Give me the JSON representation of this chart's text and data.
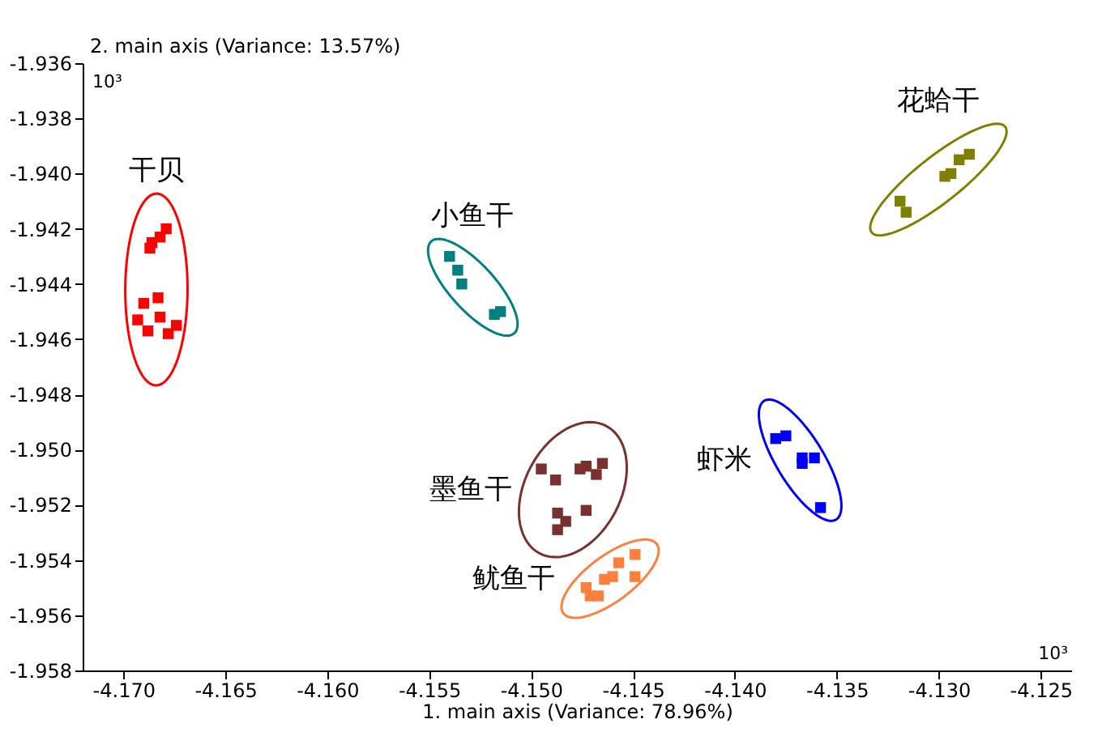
{
  "chart_data": {
    "type": "scatter",
    "xlabel": "1. main axis (Variance: 78.96%)",
    "ylabel": "2. main axis (Variance: 13.57%)",
    "annotations": [
      "10³",
      "10³"
    ],
    "xlim": [
      -4.172,
      -4.1235
    ],
    "ylim": [
      -1.958,
      -1.936
    ],
    "xticks": [
      {
        "value": -4.17,
        "label": "-4.170"
      },
      {
        "value": -4.165,
        "label": "-4.165"
      },
      {
        "value": -4.16,
        "label": "-4.160"
      },
      {
        "value": -4.155,
        "label": "-4.155"
      },
      {
        "value": -4.15,
        "label": "-4.150"
      },
      {
        "value": -4.145,
        "label": "-4.145"
      },
      {
        "value": -4.14,
        "label": "-4.140"
      },
      {
        "value": -4.135,
        "label": "-4.135"
      },
      {
        "value": -4.13,
        "label": "-4.130"
      },
      {
        "value": -4.125,
        "label": "-4.125"
      }
    ],
    "yticks": [
      {
        "value": -1.958,
        "label": "-1.958"
      },
      {
        "value": -1.956,
        "label": "-1.956"
      },
      {
        "value": -1.954,
        "label": "-1.954"
      },
      {
        "value": -1.952,
        "label": "-1.952"
      },
      {
        "value": -1.95,
        "label": "-1.950"
      },
      {
        "value": -1.948,
        "label": "-1.948"
      },
      {
        "value": -1.946,
        "label": "-1.946"
      },
      {
        "value": -1.944,
        "label": "-1.944"
      },
      {
        "value": -1.942,
        "label": "-1.942"
      },
      {
        "value": -1.94,
        "label": "-1.940"
      },
      {
        "value": -1.938,
        "label": "-1.938"
      },
      {
        "value": -1.936,
        "label": "-1.936"
      }
    ],
    "grid": false,
    "legend": false,
    "marker": "square",
    "series": [
      {
        "name": "干贝",
        "color": "#ff0000",
        "x": [
          -4.1679,
          -4.1682,
          -4.1686,
          -4.1687,
          -4.169,
          -4.1683,
          -4.1682,
          -4.1693,
          -4.1688,
          -4.1678,
          -4.1674
        ],
        "values": [
          -1.942,
          -1.9423,
          -1.9425,
          -1.9427,
          -1.9447,
          -1.9445,
          -1.9452,
          -1.9453,
          -1.9457,
          -1.9458,
          -1.9455
        ]
      },
      {
        "name": "小鱼干",
        "color": "#008080",
        "x": [
          -4.154,
          -4.1536,
          -4.1534,
          -4.1518,
          -4.1515
        ],
        "values": [
          -1.943,
          -1.9435,
          -1.944,
          -1.9451,
          -1.945
        ]
      },
      {
        "name": "花蛤干",
        "color": "#808000",
        "x": [
          -4.1319,
          -4.1316,
          -4.1294,
          -4.129,
          -4.1285,
          -4.1297
        ],
        "values": [
          -1.941,
          -1.9414,
          -1.94,
          -1.9395,
          -1.9393,
          -1.9401
        ]
      },
      {
        "name": "墨鱼干",
        "color": "#7b3030",
        "x": [
          -4.1495,
          -4.1488,
          -4.1476,
          -4.1473,
          -4.1468,
          -4.1465,
          -4.1473,
          -4.1487,
          -4.1483,
          -4.1487
        ],
        "values": [
          -1.9507,
          -1.9511,
          -1.9507,
          -1.9506,
          -1.9509,
          -1.9505,
          -1.9522,
          -1.9523,
          -1.9526,
          -1.9529
        ]
      },
      {
        "name": "鱿鱼干",
        "color": "#ff7f3f",
        "x": [
          -4.1473,
          -4.1467,
          -4.1464,
          -4.146,
          -4.1457,
          -4.1449,
          -4.1449,
          -4.1471
        ],
        "values": [
          -1.955,
          -1.9553,
          -1.9547,
          -1.9546,
          -1.9541,
          -1.9538,
          -1.9546,
          -1.9553
        ]
      },
      {
        "name": "虾米",
        "color": "#0000ff",
        "x": [
          -4.138,
          -4.1375,
          -4.1367,
          -4.1361,
          -4.1367,
          -4.1358
        ],
        "values": [
          -1.9496,
          -1.9495,
          -1.9503,
          -1.9503,
          -1.9505,
          -1.9521
        ]
      }
    ]
  }
}
